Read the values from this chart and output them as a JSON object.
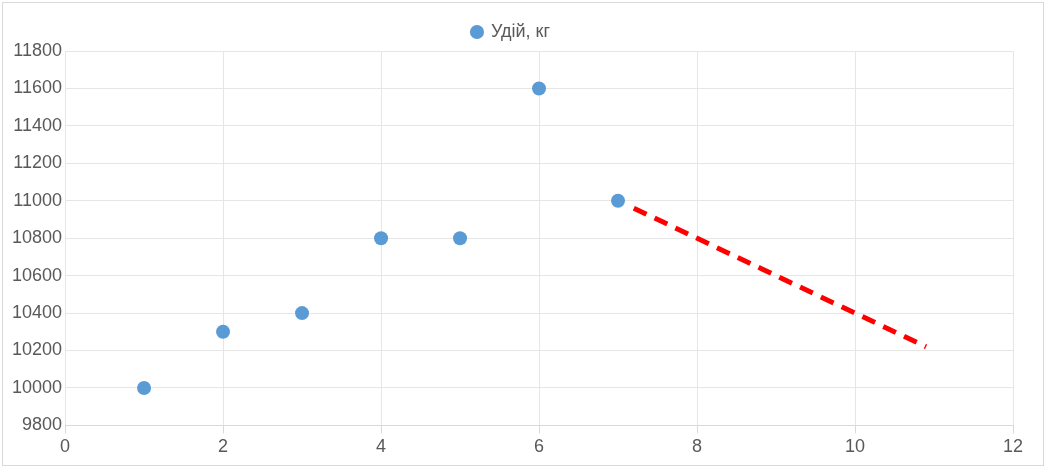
{
  "chart_data": {
    "type": "scatter",
    "x": [
      1,
      2,
      3,
      4,
      5,
      6,
      7
    ],
    "series": [
      {
        "name": "Удій, кг",
        "color": "#5b9bd5",
        "values": [
          10000,
          10300,
          10400,
          10800,
          10800,
          11600,
          11000
        ],
        "marker": "circle"
      },
      {
        "type": "line",
        "color": "#ff0000",
        "x": [
          7.2,
          10.9
        ],
        "values": [
          10960,
          10220
        ],
        "line_style": "dashed",
        "marker": "none"
      }
    ],
    "xlim": [
      0,
      12
    ],
    "xticks": [
      0,
      2,
      4,
      6,
      8,
      10,
      12
    ],
    "ylim": [
      9800,
      11800
    ],
    "yticks": [
      9800,
      10000,
      10200,
      10400,
      10600,
      10800,
      11000,
      11200,
      11400,
      11600,
      11800
    ],
    "grid": true,
    "legend": "top"
  }
}
